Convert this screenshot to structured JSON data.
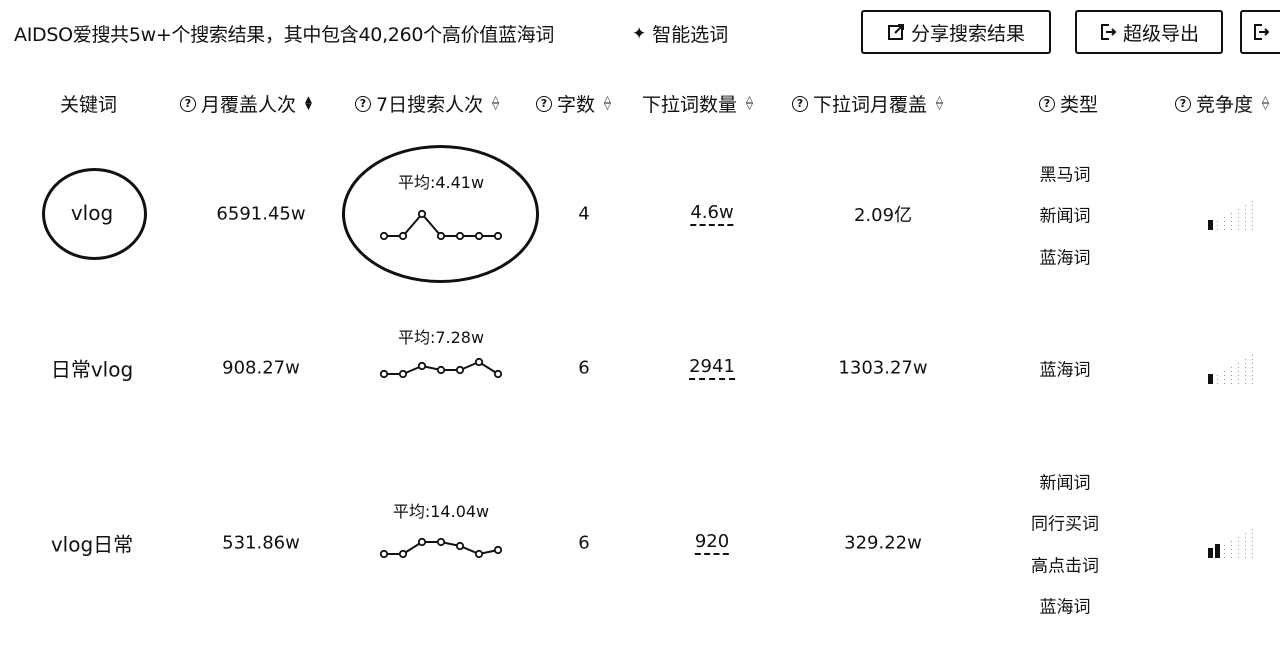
{
  "header": {
    "summary": "AIDSO爱搜共5w+个搜索结果，其中包含40,260个高价值蓝海词",
    "smart_label": "智能选词",
    "share_label": "分享搜索结果",
    "export_label": "超级导出"
  },
  "columns": [
    {
      "label": "关键词",
      "help": false,
      "sortable": false
    },
    {
      "label": "月覆盖人次",
      "help": true,
      "sortable": true
    },
    {
      "label": "7日搜索人次",
      "help": true,
      "sortable": true
    },
    {
      "label": "字数",
      "help": true,
      "sortable": true
    },
    {
      "label": "下拉词数量",
      "help": false,
      "sortable": true
    },
    {
      "label": "下拉词月覆盖",
      "help": true,
      "sortable": true
    },
    {
      "label": "类型",
      "help": true,
      "sortable": false
    },
    {
      "label": "竞争度",
      "help": true,
      "sortable": true
    }
  ],
  "rows": [
    {
      "keyword": "vlog",
      "monthly": "6591.45w",
      "avg": "平均:4.41w",
      "trend": [
        1,
        1,
        2.2,
        1,
        1,
        1,
        1
      ],
      "chars": "4",
      "dropdown_count": "4.6w",
      "dropdown_monthly": "2.09亿",
      "types": [
        "黑马词",
        "新闻词",
        "蓝海词"
      ],
      "competition": 1
    },
    {
      "keyword": "日常vlog",
      "monthly": "908.27w",
      "avg": "平均:7.28w",
      "trend": [
        1,
        1,
        1.2,
        1.1,
        1.1,
        1.3,
        1
      ],
      "chars": "6",
      "dropdown_count": "2941",
      "dropdown_monthly": "1303.27w",
      "types": [
        "蓝海词"
      ],
      "competition": 1
    },
    {
      "keyword": "vlog日常",
      "monthly": "531.86w",
      "avg": "平均:14.04w",
      "trend": [
        1,
        1,
        1.3,
        1.3,
        1.2,
        1,
        1.1
      ],
      "chars": "6",
      "dropdown_count": "920",
      "dropdown_monthly": "329.22w",
      "types": [
        "新闻词",
        "同行买词",
        "高点击词",
        "蓝海词"
      ],
      "competition": 2
    }
  ]
}
